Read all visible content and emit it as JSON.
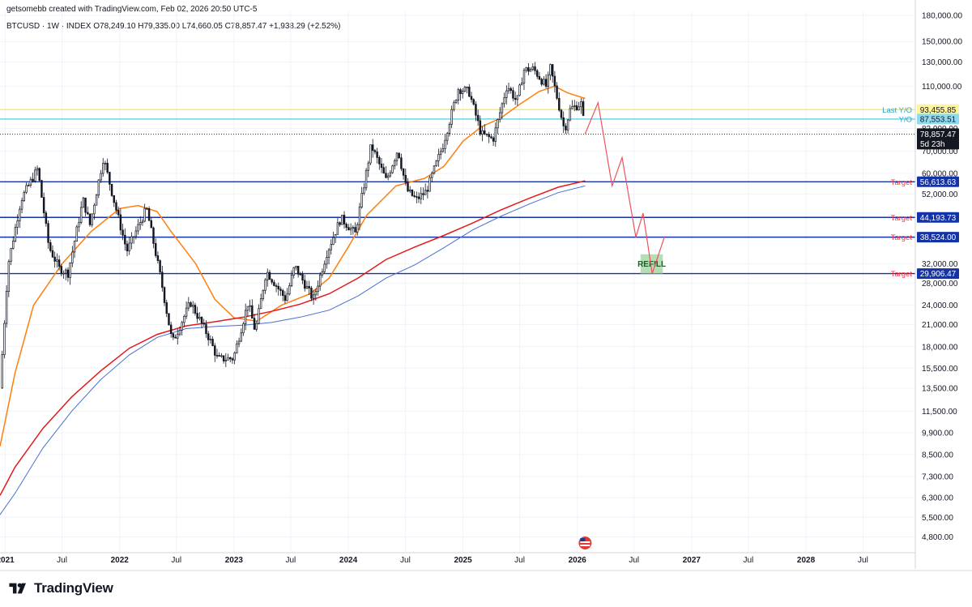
{
  "header": {
    "credit": "getsomebb created with TradingView.com, Feb 02, 2026 20:50 UTC-5",
    "symbol_line": "BTCUSD · 1W · INDEX  O78,249.10  H79,335.00  L74,660.05  C78,857.47  +1,938.29 (+2.52%)"
  },
  "brand": {
    "name": "TradingView",
    "logo_icon": "tradingview-logo-icon"
  },
  "colors": {
    "candle": "#131722",
    "ma_orange": "#ff7f0e",
    "ma_red": "#e31b1b",
    "ma_blue": "#4a6fd1",
    "target_line": "#1433a6",
    "yellow_line": "#f5e94a",
    "cyan_line": "#5bc8e0",
    "projection": "#f0525e",
    "refill_box": "#a8d8a8"
  },
  "chart_data": {
    "type": "candlestick",
    "symbol": "BTCUSD",
    "interval": "1W",
    "exchange": "INDEX",
    "ohlc": {
      "open": 78249.1,
      "high": 79335.0,
      "low": 74660.05,
      "close": 78857.47,
      "change": 1938.29,
      "change_pct": 2.52
    },
    "y_scale": "log",
    "ylim": [
      4300,
      185000
    ],
    "xlim": [
      "2020-12-15",
      "2028-12-15"
    ],
    "y_ticks": [
      "180,000.00",
      "150,000.00",
      "130,000.00",
      "110,000.00",
      "82,000.00",
      "70,000.00",
      "60,000.00",
      "52,000.00",
      "32,000.00",
      "28,000.00",
      "24,000.00",
      "21,000.00",
      "18,000.00",
      "15,500.00",
      "13,500.00",
      "11,500.00",
      "9,900.00",
      "8,500.00",
      "7,300.00",
      "6,300.00",
      "5,500.00",
      "4,800.00"
    ],
    "y_tick_values": [
      180000,
      150000,
      130000,
      110000,
      82000,
      70000,
      60000,
      52000,
      32000,
      28000,
      24000,
      21000,
      18000,
      15500,
      13500,
      11500,
      9900,
      8500,
      7300,
      6300,
      5500,
      4800
    ],
    "x_ticks": [
      {
        "label": "2021",
        "date": "2021-01-01",
        "bold": true
      },
      {
        "label": "Jul",
        "date": "2021-07-01",
        "bold": false
      },
      {
        "label": "2022",
        "date": "2022-01-01",
        "bold": true
      },
      {
        "label": "Jul",
        "date": "2022-07-01",
        "bold": false
      },
      {
        "label": "2023",
        "date": "2023-01-01",
        "bold": true
      },
      {
        "label": "Jul",
        "date": "2023-07-01",
        "bold": false
      },
      {
        "label": "2024",
        "date": "2024-01-01",
        "bold": true
      },
      {
        "label": "Jul",
        "date": "2024-07-01",
        "bold": false
      },
      {
        "label": "2025",
        "date": "2025-01-01",
        "bold": true
      },
      {
        "label": "Jul",
        "date": "2025-07-01",
        "bold": false
      },
      {
        "label": "2026",
        "date": "2026-01-01",
        "bold": true
      },
      {
        "label": "Jul",
        "date": "2026-07-01",
        "bold": false
      },
      {
        "label": "2027",
        "date": "2027-01-01",
        "bold": true
      },
      {
        "label": "Jul",
        "date": "2027-07-01",
        "bold": false
      },
      {
        "label": "2028",
        "date": "2028-01-01",
        "bold": true
      },
      {
        "label": "Jul",
        "date": "2028-07-01",
        "bold": false
      }
    ],
    "price_path": [
      [
        "2020-12-15",
        13500
      ],
      [
        "2021-01-10",
        32000
      ],
      [
        "2021-02-20",
        50000
      ],
      [
        "2021-04-14",
        62000
      ],
      [
        "2021-05-20",
        36000
      ],
      [
        "2021-06-22",
        31000
      ],
      [
        "2021-07-20",
        30000
      ],
      [
        "2021-09-06",
        50000
      ],
      [
        "2021-09-28",
        42000
      ],
      [
        "2021-11-10",
        67000
      ],
      [
        "2021-12-20",
        47000
      ],
      [
        "2022-01-24",
        35000
      ],
      [
        "2022-03-28",
        47000
      ],
      [
        "2022-05-12",
        29000
      ],
      [
        "2022-06-18",
        18500
      ],
      [
        "2022-08-15",
        24500
      ],
      [
        "2022-10-15",
        19000
      ],
      [
        "2022-11-10",
        16500
      ],
      [
        "2022-12-30",
        16600
      ],
      [
        "2023-02-15",
        24500
      ],
      [
        "2023-03-10",
        20000
      ],
      [
        "2023-04-14",
        30500
      ],
      [
        "2023-06-15",
        25000
      ],
      [
        "2023-07-14",
        31500
      ],
      [
        "2023-09-11",
        25000
      ],
      [
        "2023-10-24",
        34500
      ],
      [
        "2023-12-08",
        44000
      ],
      [
        "2024-01-23",
        39500
      ],
      [
        "2024-03-14",
        73000
      ],
      [
        "2024-05-01",
        57000
      ],
      [
        "2024-06-07",
        71000
      ],
      [
        "2024-07-05",
        53500
      ],
      [
        "2024-08-05",
        50000
      ],
      [
        "2024-09-06",
        53000
      ],
      [
        "2024-10-29",
        73000
      ],
      [
        "2024-12-17",
        108000
      ],
      [
        "2025-01-20",
        106000
      ],
      [
        "2025-02-28",
        79000
      ],
      [
        "2025-04-07",
        76000
      ],
      [
        "2025-05-22",
        111000
      ],
      [
        "2025-06-22",
        98500
      ],
      [
        "2025-07-14",
        123000
      ],
      [
        "2025-08-14",
        124000
      ],
      [
        "2025-09-26",
        109000
      ],
      [
        "2025-10-06",
        126000
      ],
      [
        "2025-11-21",
        81000
      ],
      [
        "2025-12-10",
        94000
      ],
      [
        "2026-01-14",
        97500
      ],
      [
        "2026-01-26",
        78857
      ]
    ],
    "moving_averages": [
      {
        "color_key": "ma_orange",
        "points": [
          [
            "2020-12-15",
            9000
          ],
          [
            "2021-02-01",
            15000
          ],
          [
            "2021-04-01",
            24000
          ],
          [
            "2021-07-01",
            32000
          ],
          [
            "2021-10-01",
            40000
          ],
          [
            "2022-01-01",
            47000
          ],
          [
            "2022-03-01",
            48000
          ],
          [
            "2022-05-01",
            46000
          ],
          [
            "2022-06-15",
            40000
          ],
          [
            "2022-09-01",
            32000
          ],
          [
            "2022-11-01",
            25000
          ],
          [
            "2023-01-01",
            22000
          ],
          [
            "2023-03-15",
            21500
          ],
          [
            "2023-06-01",
            24000
          ],
          [
            "2023-09-01",
            26000
          ],
          [
            "2023-11-01",
            29000
          ],
          [
            "2024-01-01",
            36000
          ],
          [
            "2024-03-01",
            45000
          ],
          [
            "2024-06-01",
            55000
          ],
          [
            "2024-09-01",
            58000
          ],
          [
            "2024-11-01",
            63000
          ],
          [
            "2025-01-01",
            75000
          ],
          [
            "2025-03-01",
            83000
          ],
          [
            "2025-05-01",
            88000
          ],
          [
            "2025-07-01",
            97000
          ],
          [
            "2025-09-01",
            106000
          ],
          [
            "2025-10-20",
            110000
          ],
          [
            "2025-12-01",
            105000
          ],
          [
            "2026-01-26",
            101000
          ]
        ]
      },
      {
        "color_key": "ma_red",
        "points": [
          [
            "2020-12-15",
            6400
          ],
          [
            "2021-02-01",
            7800
          ],
          [
            "2021-05-01",
            10200
          ],
          [
            "2021-08-01",
            12700
          ],
          [
            "2021-11-01",
            15200
          ],
          [
            "2022-02-01",
            17800
          ],
          [
            "2022-05-01",
            19600
          ],
          [
            "2022-08-01",
            20800
          ],
          [
            "2022-11-01",
            21400
          ],
          [
            "2023-02-01",
            22100
          ],
          [
            "2023-05-01",
            23000
          ],
          [
            "2023-08-01",
            24200
          ],
          [
            "2023-11-01",
            26000
          ],
          [
            "2024-02-01",
            29000
          ],
          [
            "2024-05-01",
            33000
          ],
          [
            "2024-08-01",
            36000
          ],
          [
            "2024-11-01",
            39000
          ],
          [
            "2025-02-01",
            42500
          ],
          [
            "2025-05-01",
            46500
          ],
          [
            "2025-08-01",
            50500
          ],
          [
            "2025-11-01",
            54500
          ],
          [
            "2026-01-26",
            57000
          ]
        ]
      },
      {
        "color_key": "ma_blue",
        "points": [
          [
            "2020-12-15",
            5600
          ],
          [
            "2021-02-01",
            6500
          ],
          [
            "2021-05-01",
            8900
          ],
          [
            "2021-08-01",
            11500
          ],
          [
            "2021-11-01",
            14300
          ],
          [
            "2022-02-01",
            17000
          ],
          [
            "2022-05-01",
            19200
          ],
          [
            "2022-08-01",
            20400
          ],
          [
            "2022-11-01",
            20700
          ],
          [
            "2023-02-01",
            20900
          ],
          [
            "2023-05-01",
            21300
          ],
          [
            "2023-08-01",
            22100
          ],
          [
            "2023-11-01",
            23200
          ],
          [
            "2024-02-01",
            25600
          ],
          [
            "2024-05-01",
            29000
          ],
          [
            "2024-08-01",
            31800
          ],
          [
            "2024-11-01",
            35800
          ],
          [
            "2025-02-01",
            40500
          ],
          [
            "2025-05-01",
            44500
          ],
          [
            "2025-08-01",
            48500
          ],
          [
            "2025-11-01",
            52500
          ],
          [
            "2026-01-26",
            55000
          ]
        ]
      }
    ],
    "horizontal_lines": [
      {
        "label": "Last Y/O",
        "value": 93455.85,
        "value_label": "93,455.85",
        "color_key": "yellow_line",
        "label_color": "#2aa1c4",
        "badge_bg": "#fff59a",
        "badge_fg": "#131722",
        "x_start": "2020-12-15"
      },
      {
        "label": "Y/O",
        "value": 87553.51,
        "value_label": "87,553.51",
        "color_key": "cyan_line",
        "label_color": "#2aa1c4",
        "badge_bg": "#8fdcf0",
        "badge_fg": "#131722",
        "x_start": "2020-12-15"
      },
      {
        "label": "Target",
        "value": 56613.63,
        "value_label": "56,613.63",
        "color_key": "target_line",
        "label_color": "#f23645",
        "badge_bg": "#1433a6",
        "badge_fg": "#ffffff",
        "x_start": "2020-12-15"
      },
      {
        "label": "Target",
        "value": 44193.73,
        "value_label": "44,193.73",
        "color_key": "target_line",
        "label_color": "#f23645",
        "badge_bg": "#1433a6",
        "badge_fg": "#ffffff",
        "x_start": "2020-12-15"
      },
      {
        "label": "Target",
        "value": 38524.0,
        "value_label": "38,524.00",
        "color_key": "target_line",
        "label_color": "#f23645",
        "badge_bg": "#1433a6",
        "badge_fg": "#ffffff",
        "x_start": "2020-12-15"
      },
      {
        "label": "Target",
        "value": 29906.47,
        "value_label": "29,906.47",
        "color_key": "target_line",
        "label_color": "#f23645",
        "badge_bg": "#1433a6",
        "badge_fg": "#ffffff",
        "x_start": "2020-12-15"
      }
    ],
    "current_price": {
      "value": 78857.47,
      "value_label": "78,857.47",
      "countdown": "5d 23h"
    },
    "projection_path": [
      [
        "2026-01-26",
        79000
      ],
      [
        "2026-03-08",
        98000
      ],
      [
        "2026-04-22",
        55000
      ],
      [
        "2026-05-24",
        67000
      ],
      [
        "2026-07-07",
        38500
      ],
      [
        "2026-07-30",
        45500
      ],
      [
        "2026-08-28",
        29900
      ],
      [
        "2026-10-07",
        38800
      ]
    ],
    "annotations": [
      {
        "text": "REFILL",
        "x_start": "2026-07-22",
        "x_end": "2026-10-01",
        "y_low": 29906.47,
        "y_high": 34200
      }
    ],
    "event_marker": {
      "date": "2026-01-26",
      "icon": "us-flag-event-icon"
    }
  }
}
